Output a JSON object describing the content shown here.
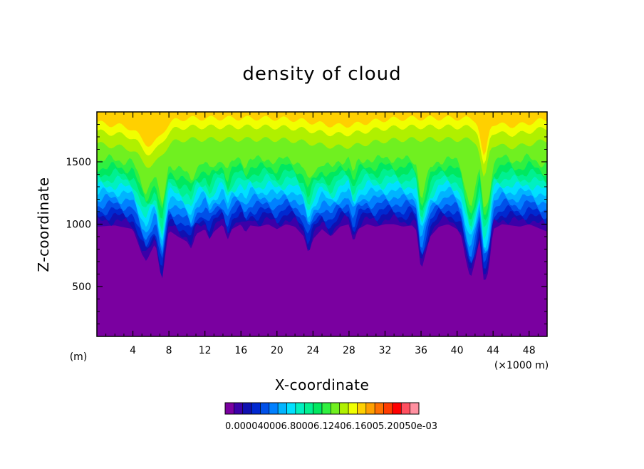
{
  "chart_data": {
    "type": "heatmap",
    "title": "density of cloud",
    "xlabel": "X-coordinate",
    "ylabel": "Z-coordinate",
    "x_unit_label": "(m)",
    "x_scale_label": "(×1000 m)",
    "xlim": [
      0,
      50
    ],
    "ylim": [
      100,
      1900
    ],
    "x_ticks": [
      4,
      8,
      12,
      16,
      20,
      24,
      28,
      32,
      36,
      40,
      44,
      48
    ],
    "y_ticks": [
      500,
      1000,
      1500
    ],
    "color_levels": [
      "#7a00a0",
      "#3c00a8",
      "#1010b0",
      "#0028d0",
      "#0050e8",
      "#0080ff",
      "#00b4ff",
      "#00e0ff",
      "#00f0c0",
      "#00f090",
      "#00e860",
      "#30f040",
      "#70f020",
      "#b0f000",
      "#f0ff00",
      "#ffd000",
      "#ffa000",
      "#ff7000",
      "#ff3c00",
      "#ff0000",
      "#ff5060",
      "#ff90a0"
    ],
    "colorbar_labels_text": "0.000040006.80006.12406.16005.20050e-03",
    "cloud_base_profile": {
      "x": [
        0,
        2,
        4,
        5,
        5.5,
        6,
        6.5,
        7,
        7.3,
        7.6,
        8,
        9,
        10,
        10.5,
        11,
        12,
        12.5,
        13,
        14,
        14.5,
        15,
        16,
        16.5,
        17,
        18,
        19,
        20,
        21,
        22,
        23,
        23.5,
        24,
        25,
        26,
        27,
        28,
        28.5,
        29,
        30,
        31,
        32,
        33,
        34,
        35,
        35.5,
        36,
        37,
        38,
        39,
        40,
        40.5,
        41,
        41.5,
        42,
        42.5,
        43,
        43.5,
        44,
        45,
        46,
        47,
        48,
        49,
        50
      ],
      "z": [
        980,
        990,
        960,
        760,
        700,
        780,
        850,
        620,
        560,
        760,
        950,
        900,
        860,
        800,
        920,
        960,
        880,
        940,
        1000,
        870,
        960,
        1000,
        930,
        990,
        980,
        1000,
        960,
        1000,
        980,
        900,
        760,
        880,
        960,
        900,
        980,
        1000,
        850,
        960,
        1000,
        980,
        1000,
        1000,
        980,
        990,
        950,
        620,
        900,
        980,
        1000,
        960,
        900,
        700,
        560,
        700,
        880,
        520,
        620,
        960,
        1000,
        990,
        980,
        1000,
        970,
        940
      ]
    }
  }
}
